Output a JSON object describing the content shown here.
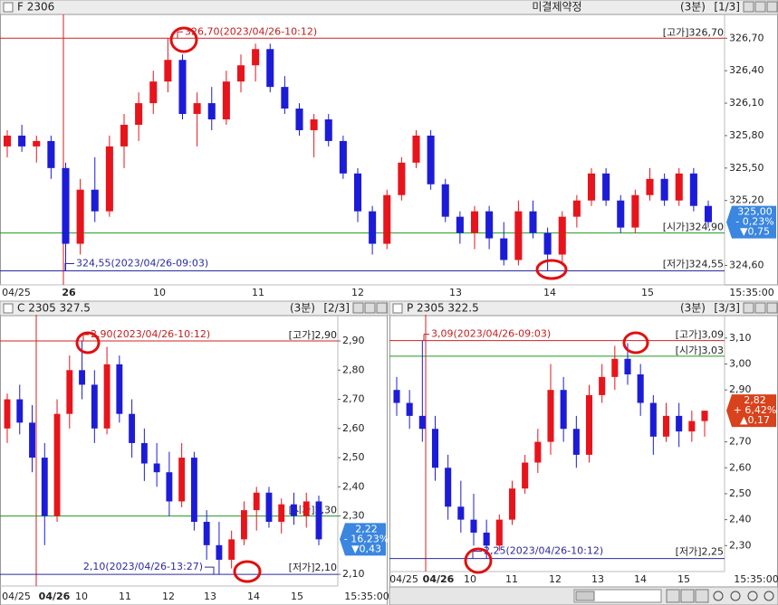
{
  "tooltip": "미결제약정",
  "chart_data": [
    {
      "type": "candlestick",
      "title": "F 2306",
      "period": "(3분)",
      "page": "[1/3]",
      "up_color": "#e8141c",
      "down_color": "#1c1cd8",
      "ylim": [
        324.42,
        326.92
      ],
      "yticks": [
        {
          "value": 326.7,
          "label": "326,70"
        },
        {
          "value": 326.4,
          "label": "326,40"
        },
        {
          "value": 326.1,
          "label": "326,10"
        },
        {
          "value": 325.8,
          "label": "325,80"
        },
        {
          "value": 325.5,
          "label": "325,50"
        },
        {
          "value": 325.2,
          "label": "325,20"
        },
        {
          "value": 324.6,
          "label": "324,60"
        }
      ],
      "xlabels": [
        "04/25",
        "26",
        "10",
        "11",
        "12",
        "13",
        "14",
        "15",
        "15:35:00"
      ],
      "hlines": [
        {
          "value": 326.7,
          "label": "[고가]326,70",
          "color": "#d42020"
        },
        {
          "value": 324.9,
          "label": "[시가]324,90",
          "color": "#1f9a1f"
        },
        {
          "value": 324.55,
          "label": "[저가]324,55",
          "color": "#2a2aa0"
        }
      ],
      "high_note": "326,70(2023/04/26-10:12)",
      "low_note": "324,55(2023/04/26-09:03)",
      "current": {
        "value": 325.0,
        "label": "325,00",
        "change": "- 0,23%",
        "diff": "▼0,75",
        "color": "#3a86e0"
      },
      "candles": [
        [
          325.7,
          325.85,
          325.6,
          325.8
        ],
        [
          325.8,
          325.9,
          325.65,
          325.7
        ],
        [
          325.7,
          325.8,
          325.55,
          325.75
        ],
        [
          325.75,
          325.8,
          325.4,
          325.5
        ],
        [
          325.5,
          325.55,
          324.55,
          324.8
        ],
        [
          324.8,
          325.4,
          324.7,
          325.3
        ],
        [
          325.3,
          325.6,
          325.0,
          325.1
        ],
        [
          325.1,
          325.8,
          325.05,
          325.7
        ],
        [
          325.7,
          326.0,
          325.5,
          325.9
        ],
        [
          325.9,
          326.2,
          325.75,
          326.1
        ],
        [
          326.1,
          326.4,
          326.0,
          326.3
        ],
        [
          326.3,
          326.7,
          326.2,
          326.5
        ],
        [
          326.5,
          326.55,
          325.95,
          326.0
        ],
        [
          326.0,
          326.2,
          325.7,
          326.1
        ],
        [
          326.1,
          326.25,
          325.85,
          325.95
        ],
        [
          325.95,
          326.4,
          325.9,
          326.3
        ],
        [
          326.3,
          326.55,
          326.2,
          326.45
        ],
        [
          326.45,
          326.65,
          326.3,
          326.6
        ],
        [
          326.6,
          326.65,
          326.2,
          326.25
        ],
        [
          326.25,
          326.35,
          326.0,
          326.05
        ],
        [
          326.05,
          326.1,
          325.8,
          325.85
        ],
        [
          325.85,
          326.0,
          325.6,
          325.95
        ],
        [
          325.95,
          326.0,
          325.7,
          325.75
        ],
        [
          325.75,
          325.8,
          325.4,
          325.45
        ],
        [
          325.45,
          325.5,
          325.0,
          325.1
        ],
        [
          325.1,
          325.15,
          324.7,
          324.8
        ],
        [
          324.8,
          325.3,
          324.75,
          325.25
        ],
        [
          325.25,
          325.6,
          325.2,
          325.55
        ],
        [
          325.55,
          325.85,
          325.5,
          325.8
        ],
        [
          325.8,
          325.85,
          325.3,
          325.35
        ],
        [
          325.35,
          325.4,
          325.0,
          325.05
        ],
        [
          325.05,
          325.1,
          324.8,
          324.9
        ],
        [
          324.9,
          325.15,
          324.75,
          325.1
        ],
        [
          325.1,
          325.15,
          324.75,
          324.85
        ],
        [
          324.85,
          325.0,
          324.6,
          324.65
        ],
        [
          324.65,
          325.2,
          324.6,
          325.1
        ],
        [
          325.1,
          325.2,
          324.85,
          324.9
        ],
        [
          324.9,
          324.95,
          324.55,
          324.7
        ],
        [
          324.7,
          325.1,
          324.6,
          325.05
        ],
        [
          325.05,
          325.25,
          324.95,
          325.2
        ],
        [
          325.2,
          325.5,
          325.15,
          325.45
        ],
        [
          325.45,
          325.5,
          325.15,
          325.2
        ],
        [
          325.2,
          325.25,
          324.9,
          324.95
        ],
        [
          324.95,
          325.3,
          324.9,
          325.25
        ],
        [
          325.25,
          325.5,
          325.2,
          325.4
        ],
        [
          325.4,
          325.45,
          325.15,
          325.2
        ],
        [
          325.2,
          325.5,
          325.15,
          325.45
        ],
        [
          325.45,
          325.5,
          325.1,
          325.15
        ],
        [
          325.15,
          325.2,
          324.95,
          325.0
        ]
      ]
    },
    {
      "type": "candlestick",
      "title": "C 2305 327.5",
      "period": "(3분)",
      "page": "[2/3]",
      "up_color": "#e8141c",
      "down_color": "#1c1cd8",
      "ylim": [
        2.06,
        2.99
      ],
      "yticks": [
        {
          "value": 2.9,
          "label": "2,90"
        },
        {
          "value": 2.8,
          "label": "2,80"
        },
        {
          "value": 2.7,
          "label": "2,70"
        },
        {
          "value": 2.6,
          "label": "2,60"
        },
        {
          "value": 2.5,
          "label": "2,50"
        },
        {
          "value": 2.4,
          "label": "2,40"
        },
        {
          "value": 2.3,
          "label": "2,30"
        },
        {
          "value": 2.1,
          "label": "2,10"
        }
      ],
      "xlabels": [
        "04/25",
        "04/26",
        "10",
        "11",
        "12",
        "13",
        "14",
        "15",
        "15:35:00"
      ],
      "hlines": [
        {
          "value": 2.9,
          "label": "[고가]2,90",
          "color": "#d42020"
        },
        {
          "value": 2.3,
          "label": "[시가]2,30",
          "color": "#1f9a1f"
        },
        {
          "value": 2.1,
          "label": "[저가]2,10",
          "color": "#2a2aa0"
        }
      ],
      "high_note": "2,90(2023/04/26-10:12)",
      "low_note": "2,10(2023/04/26-13:27)",
      "current": {
        "value": 2.22,
        "label": "2,22",
        "change": "- 16,23%",
        "diff": "▼0,43",
        "color": "#3a86e0"
      },
      "candles": [
        [
          2.6,
          2.72,
          2.55,
          2.7
        ],
        [
          2.7,
          2.75,
          2.58,
          2.62
        ],
        [
          2.62,
          2.68,
          2.45,
          2.5
        ],
        [
          2.5,
          2.55,
          2.2,
          2.3
        ],
        [
          2.3,
          2.7,
          2.28,
          2.65
        ],
        [
          2.65,
          2.85,
          2.6,
          2.8
        ],
        [
          2.8,
          2.9,
          2.7,
          2.75
        ],
        [
          2.75,
          2.8,
          2.55,
          2.6
        ],
        [
          2.6,
          2.88,
          2.58,
          2.82
        ],
        [
          2.82,
          2.85,
          2.62,
          2.65
        ],
        [
          2.65,
          2.7,
          2.5,
          2.55
        ],
        [
          2.55,
          2.6,
          2.42,
          2.48
        ],
        [
          2.48,
          2.55,
          2.4,
          2.45
        ],
        [
          2.45,
          2.52,
          2.3,
          2.35
        ],
        [
          2.35,
          2.55,
          2.33,
          2.5
        ],
        [
          2.5,
          2.52,
          2.25,
          2.28
        ],
        [
          2.28,
          2.32,
          2.15,
          2.2
        ],
        [
          2.2,
          2.28,
          2.1,
          2.15
        ],
        [
          2.15,
          2.25,
          2.12,
          2.22
        ],
        [
          2.22,
          2.35,
          2.2,
          2.32
        ],
        [
          2.32,
          2.4,
          2.25,
          2.38
        ],
        [
          2.38,
          2.4,
          2.26,
          2.28
        ],
        [
          2.28,
          2.36,
          2.24,
          2.34
        ],
        [
          2.34,
          2.38,
          2.27,
          2.3
        ],
        [
          2.3,
          2.38,
          2.26,
          2.35
        ],
        [
          2.35,
          2.37,
          2.2,
          2.22
        ]
      ]
    },
    {
      "type": "candlestick",
      "title": "P 2305 322.5",
      "period": "(3분)",
      "page": "[3/3]",
      "up_color": "#e8141c",
      "down_color": "#1c1cd8",
      "ylim": [
        2.2,
        3.19
      ],
      "yticks": [
        {
          "value": 3.1,
          "label": "3,10"
        },
        {
          "value": 3.0,
          "label": "3,00"
        },
        {
          "value": 2.9,
          "label": "2,90"
        },
        {
          "value": 2.7,
          "label": "2,70"
        },
        {
          "value": 2.6,
          "label": "2,60"
        },
        {
          "value": 2.5,
          "label": "2,50"
        },
        {
          "value": 2.4,
          "label": "2,40"
        },
        {
          "value": 2.3,
          "label": "2,30"
        }
      ],
      "xlabels": [
        "04/25",
        "04/26",
        "10",
        "11",
        "12",
        "13",
        "14",
        "15",
        "15:35:00"
      ],
      "hlines": [
        {
          "value": 3.09,
          "label": "[고가]3,09",
          "color": "#d42020"
        },
        {
          "value": 3.03,
          "label": "[시가]3,03",
          "color": "#1f9a1f"
        },
        {
          "value": 2.25,
          "label": "[저가]2,25",
          "color": "#2a2aa0"
        }
      ],
      "high_note": "3,09(2023/04/26-09:03)",
      "low_note": "2,25(2023/04/26-10:12)",
      "current": {
        "value": 2.82,
        "label": "2,82",
        "change": "+ 6,42%",
        "diff": "▲0,17",
        "color": "#d8421c"
      },
      "candles": [
        [
          2.9,
          2.95,
          2.8,
          2.85
        ],
        [
          2.85,
          2.9,
          2.75,
          2.8
        ],
        [
          2.8,
          3.09,
          2.7,
          2.75
        ],
        [
          2.75,
          2.8,
          2.55,
          2.6
        ],
        [
          2.6,
          2.65,
          2.4,
          2.45
        ],
        [
          2.45,
          2.55,
          2.35,
          2.4
        ],
        [
          2.4,
          2.5,
          2.3,
          2.35
        ],
        [
          2.35,
          2.4,
          2.25,
          2.3
        ],
        [
          2.3,
          2.42,
          2.28,
          2.4
        ],
        [
          2.4,
          2.55,
          2.38,
          2.52
        ],
        [
          2.52,
          2.65,
          2.5,
          2.62
        ],
        [
          2.62,
          2.75,
          2.58,
          2.7
        ],
        [
          2.7,
          3.0,
          2.65,
          2.9
        ],
        [
          2.9,
          2.95,
          2.7,
          2.75
        ],
        [
          2.75,
          2.8,
          2.6,
          2.65
        ],
        [
          2.65,
          2.92,
          2.62,
          2.88
        ],
        [
          2.88,
          3.0,
          2.85,
          2.95
        ],
        [
          2.95,
          3.07,
          2.9,
          3.02
        ],
        [
          3.02,
          3.08,
          2.92,
          2.96
        ],
        [
          2.96,
          3.0,
          2.8,
          2.85
        ],
        [
          2.85,
          2.88,
          2.65,
          2.72
        ],
        [
          2.72,
          2.85,
          2.7,
          2.8
        ],
        [
          2.8,
          2.85,
          2.68,
          2.74
        ],
        [
          2.74,
          2.82,
          2.7,
          2.78
        ],
        [
          2.78,
          2.82,
          2.72,
          2.82
        ]
      ]
    }
  ]
}
